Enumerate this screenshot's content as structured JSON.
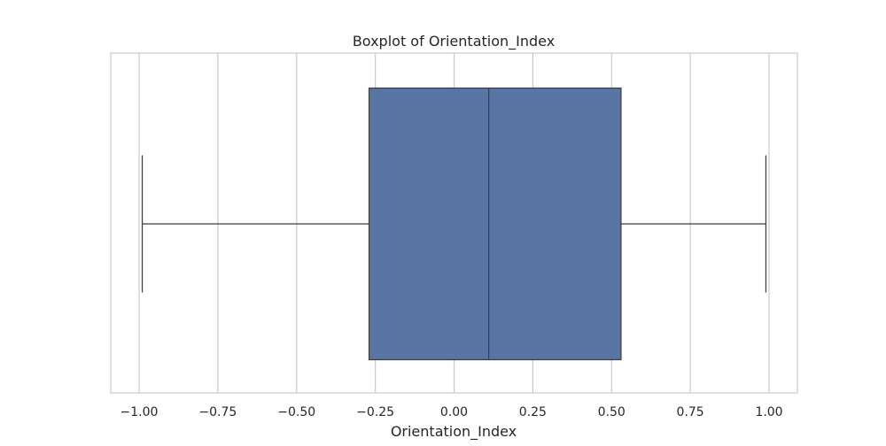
{
  "chart_data": {
    "type": "box",
    "title": "Boxplot of Orientation_Index",
    "xlabel": "Orientation_Index",
    "ylabel": "",
    "orientation": "horizontal",
    "xlim": [
      -1.09,
      1.09
    ],
    "xticks": [
      -1.0,
      -0.75,
      -0.5,
      -0.25,
      0.0,
      0.25,
      0.5,
      0.75,
      1.0
    ],
    "xtick_labels": [
      "−1.00",
      "−0.75",
      "−0.50",
      "−0.25",
      "0.00",
      "0.25",
      "0.50",
      "0.75",
      "1.00"
    ],
    "grid": "vertical",
    "series": [
      {
        "whisker_low": -0.99,
        "q1": -0.27,
        "median": 0.11,
        "q3": 0.53,
        "whisker_high": 0.99
      }
    ]
  },
  "colors": {
    "box_fill": "#5875a4",
    "line": "#3f3f3f",
    "grid": "#cccccc",
    "frame": "#cccccc",
    "text": "#262626"
  }
}
